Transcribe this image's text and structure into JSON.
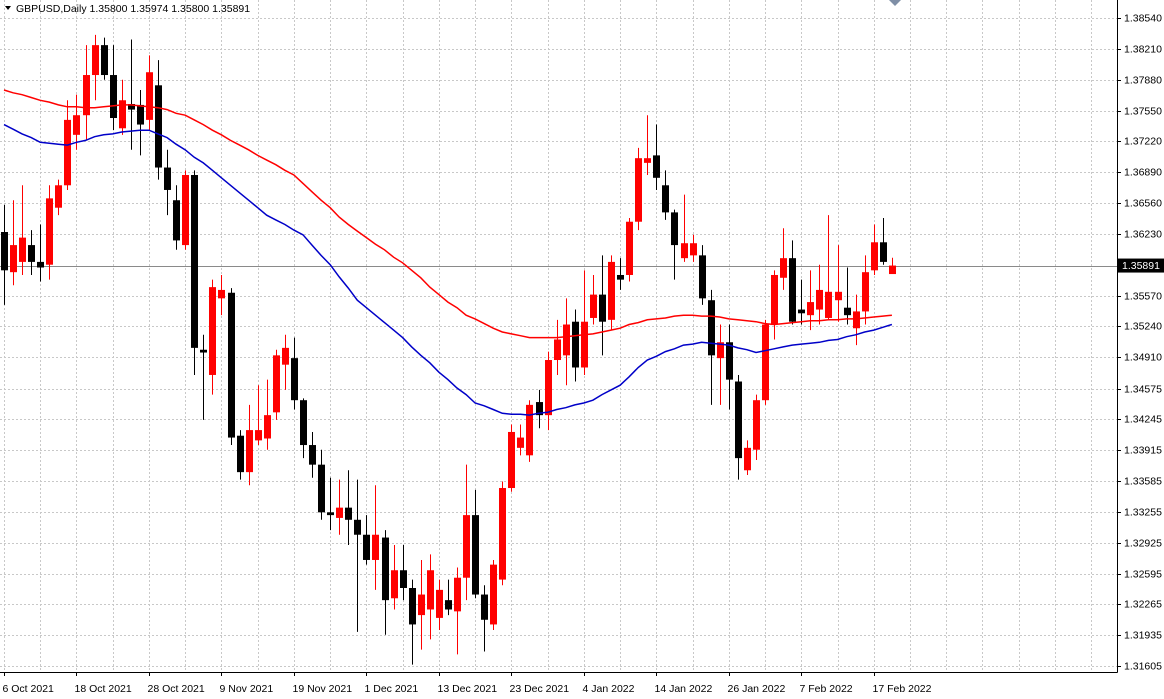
{
  "chart_data": {
    "type": "candlestick",
    "title": "GBPUSD,Daily  1.35800 1.35974 1.35800 1.35891",
    "categories": [
      "6 Oct 2021",
      null,
      null,
      null,
      null,
      null,
      null,
      null,
      "18 Oct 2021",
      null,
      null,
      null,
      null,
      null,
      null,
      null,
      "28 Oct 2021",
      null,
      null,
      null,
      null,
      null,
      null,
      null,
      "9 Nov 2021",
      null,
      null,
      null,
      null,
      null,
      null,
      null,
      "19 Nov 2021",
      null,
      null,
      null,
      null,
      null,
      null,
      null,
      "1 Dec 2021",
      null,
      null,
      null,
      null,
      null,
      null,
      null,
      "13 Dec 2021",
      null,
      null,
      null,
      null,
      null,
      null,
      null,
      "23 Dec 2021",
      null,
      null,
      null,
      null,
      null,
      null,
      null,
      "4 Jan 2022",
      null,
      null,
      null,
      null,
      null,
      null,
      null,
      "14 Jan 2022",
      null,
      null,
      null,
      null,
      null,
      null,
      null,
      "26 Jan 2022",
      null,
      null,
      null,
      null,
      null,
      null,
      null,
      "7 Feb 2022",
      null,
      null,
      null,
      null,
      null,
      null,
      null,
      "17 Feb 2022",
      null,
      null
    ],
    "open": [
      1.3625,
      1.3582,
      1.3593,
      1.3611,
      1.3593,
      1.359,
      1.3651,
      1.3675,
      1.3729,
      1.375,
      1.3793,
      1.3825,
      1.3793,
      1.3736,
      1.3762,
      1.3761,
      1.3745,
      1.3782,
      1.3694,
      1.3659,
      1.3611,
      1.3686,
      1.3499,
      1.3472,
      1.3554,
      1.356,
      1.3407,
      1.3368,
      1.3402,
      1.3404,
      1.3432,
      1.3483,
      1.349,
      1.3445,
      1.3397,
      1.3376,
      1.3325,
      1.3319,
      1.333,
      1.3317,
      1.3301,
      1.3274,
      1.3298,
      1.3233,
      1.3263,
      1.3244,
      1.3215,
      1.3221,
      1.3212,
      1.3231,
      1.3219,
      1.3255,
      1.3322,
      1.3237,
      1.3205,
      1.3253,
      1.3351,
      1.3394,
      1.3386,
      1.3443,
      1.3429,
      1.3488,
      1.3493,
      1.3529,
      1.348,
      1.3533,
      1.3558,
      1.3531,
      1.3579,
      1.3579,
      1.3636,
      1.3699,
      1.3707,
      1.3675,
      1.3646,
      1.3597,
      1.36,
      1.36,
      1.3552,
      1.349,
      1.3507,
      1.3465,
      1.337,
      1.3392,
      1.3445,
      1.3526,
      1.3576,
      1.3597,
      1.3542,
      1.3536,
      1.3542,
      1.3533,
      1.3552,
      1.3544,
      1.3522,
      1.354,
      1.3584,
      1.3614,
      1.358
    ],
    "high": [
      1.3654,
      1.3659,
      1.3675,
      1.3627,
      1.3633,
      1.3675,
      1.3681,
      1.3766,
      1.3772,
      1.3825,
      1.3836,
      1.3833,
      1.3825,
      1.3788,
      1.3831,
      1.3777,
      1.3814,
      1.3809,
      1.3713,
      1.3675,
      1.3691,
      1.3691,
      1.3515,
      1.3574,
      1.3579,
      1.3565,
      1.3413,
      1.344,
      1.3461,
      1.3467,
      1.3499,
      1.3515,
      1.3512,
      1.3447,
      1.3411,
      1.3392,
      1.3362,
      1.336,
      1.337,
      1.336,
      1.3322,
      1.3354,
      1.3306,
      1.329,
      1.329,
      1.3253,
      1.3274,
      1.328,
      1.3253,
      1.3253,
      1.3266,
      1.3376,
      1.3349,
      1.3247,
      1.3274,
      1.3358,
      1.3419,
      1.3419,
      1.3445,
      1.3456,
      1.3497,
      1.3531,
      1.3554,
      1.3542,
      1.3584,
      1.3579,
      1.36,
      1.36,
      1.3597,
      1.364,
      1.3715,
      1.375,
      1.374,
      1.3691,
      1.3649,
      1.3665,
      1.3622,
      1.3611,
      1.3563,
      1.3526,
      1.3526,
      1.3472,
      1.3402,
      1.3451,
      1.3531,
      1.3584,
      1.3629,
      1.3616,
      1.3574,
      1.3584,
      1.359,
      1.3643,
      1.3611,
      1.3587,
      1.3558,
      1.36,
      1.3633,
      1.364,
      1.35974
    ],
    "low": [
      1.3547,
      1.3568,
      1.3579,
      1.3579,
      1.3572,
      1.3574,
      1.3643,
      1.367,
      1.3713,
      1.3723,
      1.3766,
      1.3788,
      1.3734,
      1.3729,
      1.3713,
      1.3707,
      1.3734,
      1.3681,
      1.3643,
      1.3606,
      1.3606,
      1.3472,
      1.3424,
      1.3451,
      1.3536,
      1.3397,
      1.336,
      1.3354,
      1.3397,
      1.3392,
      1.3424,
      1.3456,
      1.3435,
      1.3383,
      1.3362,
      1.3317,
      1.3306,
      1.3301,
      1.329,
      1.3197,
      1.3269,
      1.3242,
      1.3194,
      1.3221,
      1.3231,
      1.3162,
      1.3178,
      1.3189,
      1.3199,
      1.3215,
      1.3173,
      1.3231,
      1.3233,
      1.3176,
      1.3199,
      1.3247,
      1.3347,
      1.3386,
      1.3379,
      1.3415,
      1.3413,
      1.3472,
      1.3461,
      1.3465,
      1.3472,
      1.3526,
      1.3493,
      1.352,
      1.3563,
      1.3572,
      1.3627,
      1.3686,
      1.367,
      1.3638,
      1.3574,
      1.3593,
      1.3593,
      1.3547,
      1.344,
      1.344,
      1.3435,
      1.336,
      1.3365,
      1.3381,
      1.344,
      1.351,
      1.3563,
      1.3526,
      1.3526,
      1.352,
      1.3526,
      1.3531,
      1.3529,
      1.3526,
      1.3504,
      1.3526,
      1.3579,
      1.359,
      1.358
    ],
    "close": [
      1.3584,
      1.3611,
      1.3619,
      1.3593,
      1.3587,
      1.3661,
      1.3675,
      1.3745,
      1.375,
      1.3793,
      1.3825,
      1.3793,
      1.3747,
      1.3766,
      1.3756,
      1.374,
      1.3796,
      1.3694,
      1.367,
      1.3616,
      1.3686,
      1.3501,
      1.3496,
      1.3566,
      1.3563,
      1.3405,
      1.3368,
      1.3413,
      1.3413,
      1.3429,
      1.3493,
      1.3501,
      1.3445,
      1.3397,
      1.3376,
      1.3325,
      1.3322,
      1.333,
      1.3317,
      1.3301,
      1.3274,
      1.3301,
      1.3231,
      1.3263,
      1.3244,
      1.3205,
      1.3237,
      1.3263,
      1.3242,
      1.3221,
      1.3255,
      1.3322,
      1.3237,
      1.321,
      1.3269,
      1.3351,
      1.3411,
      1.3405,
      1.344,
      1.3429,
      1.3488,
      1.351,
      1.3526,
      1.348,
      1.3529,
      1.3558,
      1.3529,
      1.3593,
      1.3574,
      1.3636,
      1.3704,
      1.3704,
      1.3683,
      1.3646,
      1.3611,
      1.3613,
      1.3613,
      1.3554,
      1.3493,
      1.3507,
      1.3467,
      1.3383,
      1.3394,
      1.3445,
      1.3526,
      1.3579,
      1.3597,
      1.3529,
      1.3538,
      1.355,
      1.3563,
      1.3561,
      1.3561,
      1.3536,
      1.354,
      1.3582,
      1.3614,
      1.3593,
      1.35891
    ],
    "up_color": "#ff0000",
    "down_color": "#000000",
    "series": [
      {
        "color": "#ff0000",
        "values": [
          1.3777,
          1.3774,
          1.3772,
          1.3769,
          1.3766,
          1.3764,
          1.3761,
          1.3759,
          1.3759,
          1.3758,
          1.3758,
          1.3759,
          1.376,
          1.3761,
          1.3761,
          1.376,
          1.3759,
          1.3758,
          1.3756,
          1.3752,
          1.375,
          1.3745,
          1.374,
          1.3734,
          1.3729,
          1.3723,
          1.3718,
          1.3713,
          1.3707,
          1.3702,
          1.3697,
          1.3691,
          1.3686,
          1.3677,
          1.3668,
          1.3659,
          1.3651,
          1.3641,
          1.3633,
          1.3626,
          1.3619,
          1.3612,
          1.3606,
          1.3598,
          1.3592,
          1.3584,
          1.3576,
          1.3566,
          1.3558,
          1.355,
          1.3544,
          1.3536,
          1.3532,
          1.3527,
          1.3522,
          1.3518,
          1.3516,
          1.3514,
          1.3512,
          1.3512,
          1.3512,
          1.3512,
          1.3513,
          1.3514,
          1.3515,
          1.3516,
          1.3518,
          1.352,
          1.3522,
          1.3526,
          1.3528,
          1.3531,
          1.3532,
          1.3533,
          1.3535,
          1.3536,
          1.3536,
          1.3535,
          1.3535,
          1.3534,
          1.3532,
          1.3531,
          1.353,
          1.3529,
          1.3527,
          1.3526,
          1.3527,
          1.3528,
          1.3529,
          1.353,
          1.353,
          1.3531,
          1.3531,
          1.3532,
          1.3532,
          1.3533,
          1.3534,
          1.3535,
          1.3536
        ]
      },
      {
        "color": "#0000c8",
        "values": [
          1.374,
          1.3735,
          1.373,
          1.3726,
          1.3721,
          1.372,
          1.3719,
          1.3718,
          1.3721,
          1.3723,
          1.3727,
          1.3729,
          1.373,
          1.3732,
          1.3733,
          1.3734,
          1.3734,
          1.373,
          1.3726,
          1.3719,
          1.3713,
          1.3705,
          1.3699,
          1.3691,
          1.3683,
          1.3675,
          1.3667,
          1.3659,
          1.3651,
          1.3643,
          1.3638,
          1.3633,
          1.3627,
          1.3622,
          1.3611,
          1.36,
          1.359,
          1.3577,
          1.3565,
          1.3552,
          1.3544,
          1.3536,
          1.3528,
          1.352,
          1.3512,
          1.3502,
          1.3493,
          1.3485,
          1.3475,
          1.3467,
          1.3458,
          1.3451,
          1.3442,
          1.3439,
          1.3435,
          1.3431,
          1.343,
          1.343,
          1.3429,
          1.3431,
          1.3432,
          1.3435,
          1.3437,
          1.344,
          1.3442,
          1.3445,
          1.3451,
          1.3456,
          1.3461,
          1.347,
          1.348,
          1.3488,
          1.3492,
          1.3497,
          1.35,
          1.3504,
          1.3505,
          1.3507,
          1.3506,
          1.3505,
          1.3504,
          1.3501,
          1.3499,
          1.3496,
          1.3498,
          1.35,
          1.3502,
          1.3504,
          1.3505,
          1.3506,
          1.3507,
          1.3509,
          1.351,
          1.3513,
          1.3515,
          1.3518,
          1.352,
          1.3523,
          1.3526
        ]
      }
    ],
    "current_price": 1.35891,
    "ylim": [
      1.31541,
      1.38733
    ],
    "yticks": [
      {
        "value": 1.3854,
        "label": "1.38540"
      },
      {
        "value": 1.3821,
        "label": "1.38210"
      },
      {
        "value": 1.3788,
        "label": "1.37880"
      },
      {
        "value": 1.3755,
        "label": "1.37550"
      },
      {
        "value": 1.3722,
        "label": "1.37220"
      },
      {
        "value": 1.3689,
        "label": "1.36890"
      },
      {
        "value": 1.3656,
        "label": "1.36560"
      },
      {
        "value": 1.3623,
        "label": "1.36230"
      },
      {
        "value": 1.3557,
        "label": "1.35570"
      },
      {
        "value": 1.3524,
        "label": "1.35240"
      },
      {
        "value": 1.3491,
        "label": "1.34910"
      },
      1.34575,
      1.34245,
      1.33915,
      1.33585,
      1.33255,
      1.32925,
      1.32595,
      1.32265,
      1.31935,
      1.31605
    ],
    "grid": true
  }
}
